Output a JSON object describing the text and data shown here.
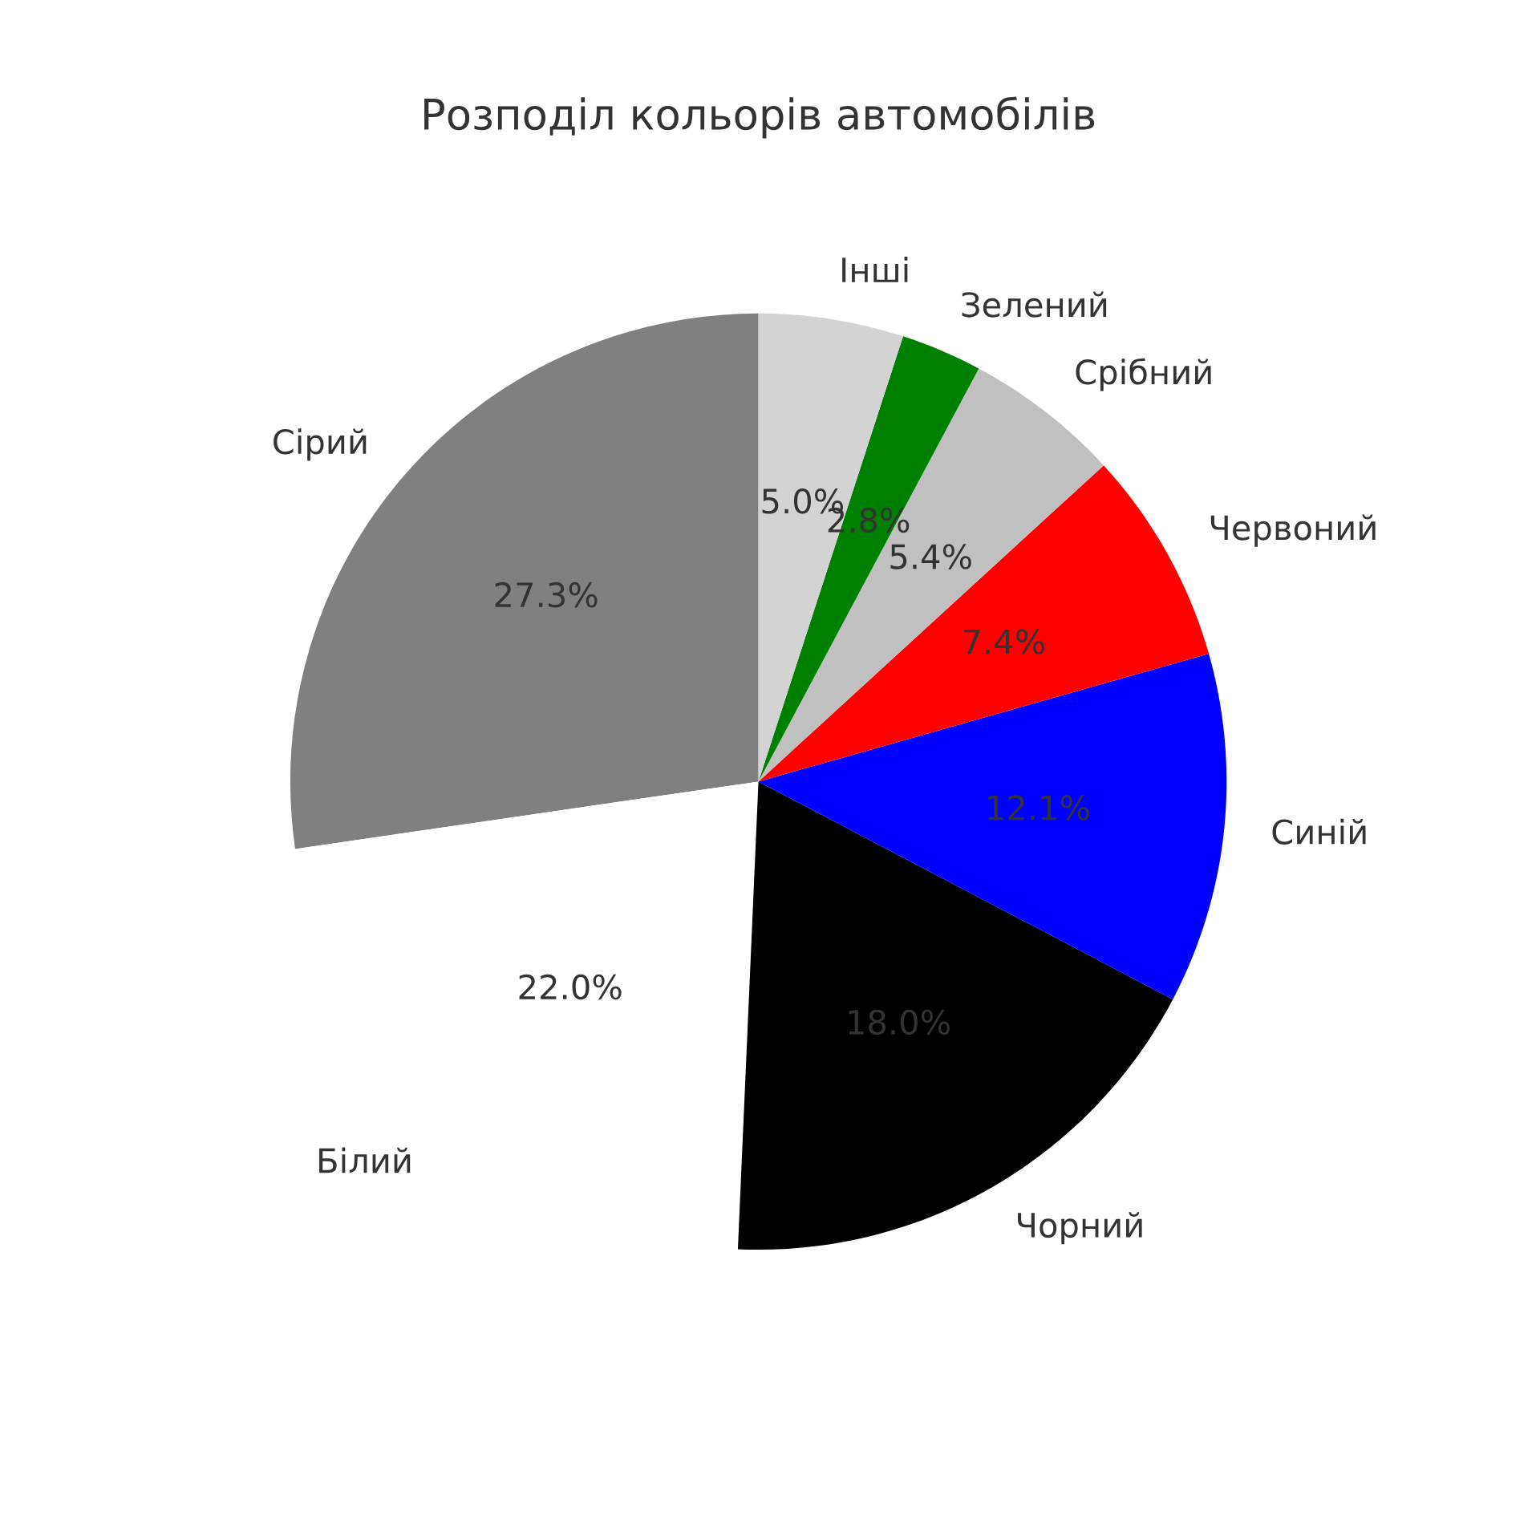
{
  "chart_data": {
    "type": "pie",
    "title": "Розподіл кольорів автомобілів",
    "categories": [
      "Сірий",
      "Білий",
      "Чорний",
      "Синій",
      "Червоний",
      "Срібний",
      "Зелений",
      "Інші"
    ],
    "values": [
      27.3,
      22.0,
      18.0,
      12.1,
      7.4,
      5.4,
      2.8,
      5.0
    ],
    "value_labels": [
      "27.3%",
      "22.0%",
      "18.0%",
      "12.1%",
      "7.4%",
      "5.4%",
      "2.8%",
      "5.0%"
    ],
    "colors": [
      "#808080",
      "#ffffff",
      "#000000",
      "#0000ff",
      "#ff0000",
      "#c0c0c0",
      "#008000",
      "#d3d3d3"
    ]
  }
}
